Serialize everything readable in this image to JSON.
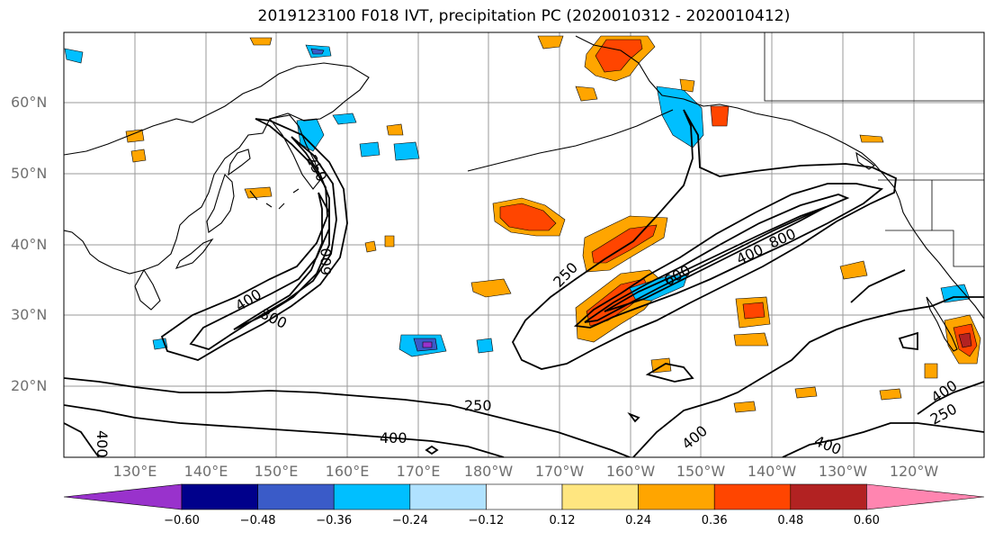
{
  "title": "2019123100 F018 IVT, precipitation PC (2020010312 - 2020010412)",
  "lat_labels": [
    "60°N",
    "50°N",
    "40°N",
    "30°N",
    "20°N"
  ],
  "lon_labels": [
    "130°E",
    "140°E",
    "150°E",
    "160°E",
    "170°E",
    "180°W",
    "170°W",
    "160°W",
    "150°W",
    "140°W",
    "130°W",
    "120°W"
  ],
  "contour_labels": [
    "250",
    "400",
    "600",
    "800",
    "250",
    "400",
    "600",
    "800",
    "250",
    "400",
    "400",
    "400",
    "400",
    "250",
    "400",
    "400"
  ],
  "colorbar": {
    "ticks": [
      "−0.60",
      "−0.48",
      "−0.36",
      "−0.24",
      "−0.12",
      "0.12",
      "0.24",
      "0.36",
      "0.48",
      "0.60"
    ],
    "colors": [
      "#9932cc",
      "#00008b",
      "#3a5bc8",
      "#00bfff",
      "#b0e2ff",
      "#ffffff",
      "#ffe680",
      "#ffa500",
      "#ff4500",
      "#b22222",
      "#ff85b0"
    ]
  },
  "colors": {
    "contour": "#000000",
    "grid": "#9a9a9a",
    "coast": "#000000"
  }
}
